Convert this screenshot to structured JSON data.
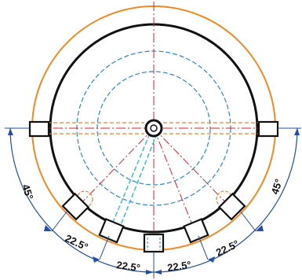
{
  "drawing": {
    "angle_labels": {
      "left_upper": "45°",
      "right_upper": "45°",
      "bottom_1": "22.5°",
      "bottom_2": "22.5°",
      "bottom_3": "22.5°",
      "bottom_4": "22.5°"
    },
    "colors": {
      "outer_circle": "#f08a24",
      "body_circle": "#111111",
      "hidden_lines_blue": "#2e86c8",
      "hidden_lines_orange": "#e8833a",
      "center_lines_red": "#d8232a",
      "dimension_blue": "#1f4fa8",
      "cyan_lines": "#2fb7e0"
    }
  }
}
